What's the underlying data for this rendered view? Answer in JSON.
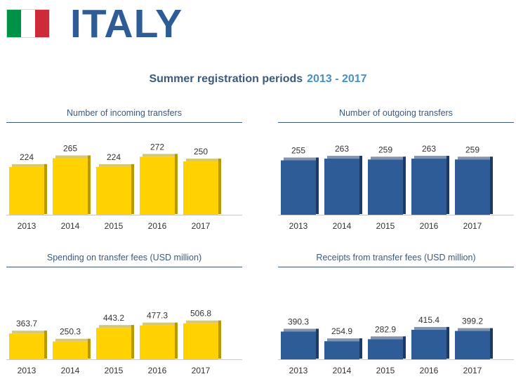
{
  "header": {
    "country": "ITALY",
    "flag_colors": [
      "#009246",
      "#ffffff",
      "#ce2b37"
    ]
  },
  "subtitle": {
    "text": "Summer registration periods",
    "range": "2013 - 2017"
  },
  "chart_data": [
    {
      "type": "bar",
      "title": "Number of incoming transfers",
      "categories": [
        "2013",
        "2014",
        "2015",
        "2016",
        "2017"
      ],
      "values": [
        224,
        265,
        224,
        272,
        250
      ],
      "labels": [
        "224",
        "265",
        "224",
        "272",
        "250"
      ],
      "ylim": [
        0,
        500
      ],
      "color": "#ffd200",
      "side_color": "#b89a00",
      "xlabel": "",
      "ylabel": ""
    },
    {
      "type": "bar",
      "title": "Number of outgoing transfers",
      "categories": [
        "2013",
        "2014",
        "2015",
        "2016",
        "2017"
      ],
      "values": [
        255,
        263,
        259,
        263,
        259
      ],
      "labels": [
        "255",
        "263",
        "259",
        "263",
        "259"
      ],
      "ylim": [
        0,
        500
      ],
      "color": "#2e5c96",
      "side_color": "#1c3a66",
      "xlabel": "",
      "ylabel": ""
    },
    {
      "type": "bar",
      "title": "Spending on transfer fees (USD million)",
      "categories": [
        "2013",
        "2014",
        "2015",
        "2016",
        "2017"
      ],
      "values": [
        363.7,
        250.3,
        443.2,
        477.3,
        506.8
      ],
      "labels": [
        "363.7",
        "250.3",
        "443.2",
        "477.3",
        "506.8"
      ],
      "ylim": [
        0,
        1500
      ],
      "color": "#ffd200",
      "side_color": "#b89a00",
      "xlabel": "",
      "ylabel": ""
    },
    {
      "type": "bar",
      "title": "Receipts from transfer fees (USD million)",
      "categories": [
        "2013",
        "2014",
        "2015",
        "2016",
        "2017"
      ],
      "values": [
        390.3,
        254.9,
        282.9,
        415.4,
        399.2
      ],
      "labels": [
        "390.3",
        "254.9",
        "282.9",
        "415.4",
        "399.2"
      ],
      "ylim": [
        0,
        1500
      ],
      "color": "#2e5c96",
      "side_color": "#1c3a66",
      "xlabel": "",
      "ylabel": ""
    }
  ]
}
